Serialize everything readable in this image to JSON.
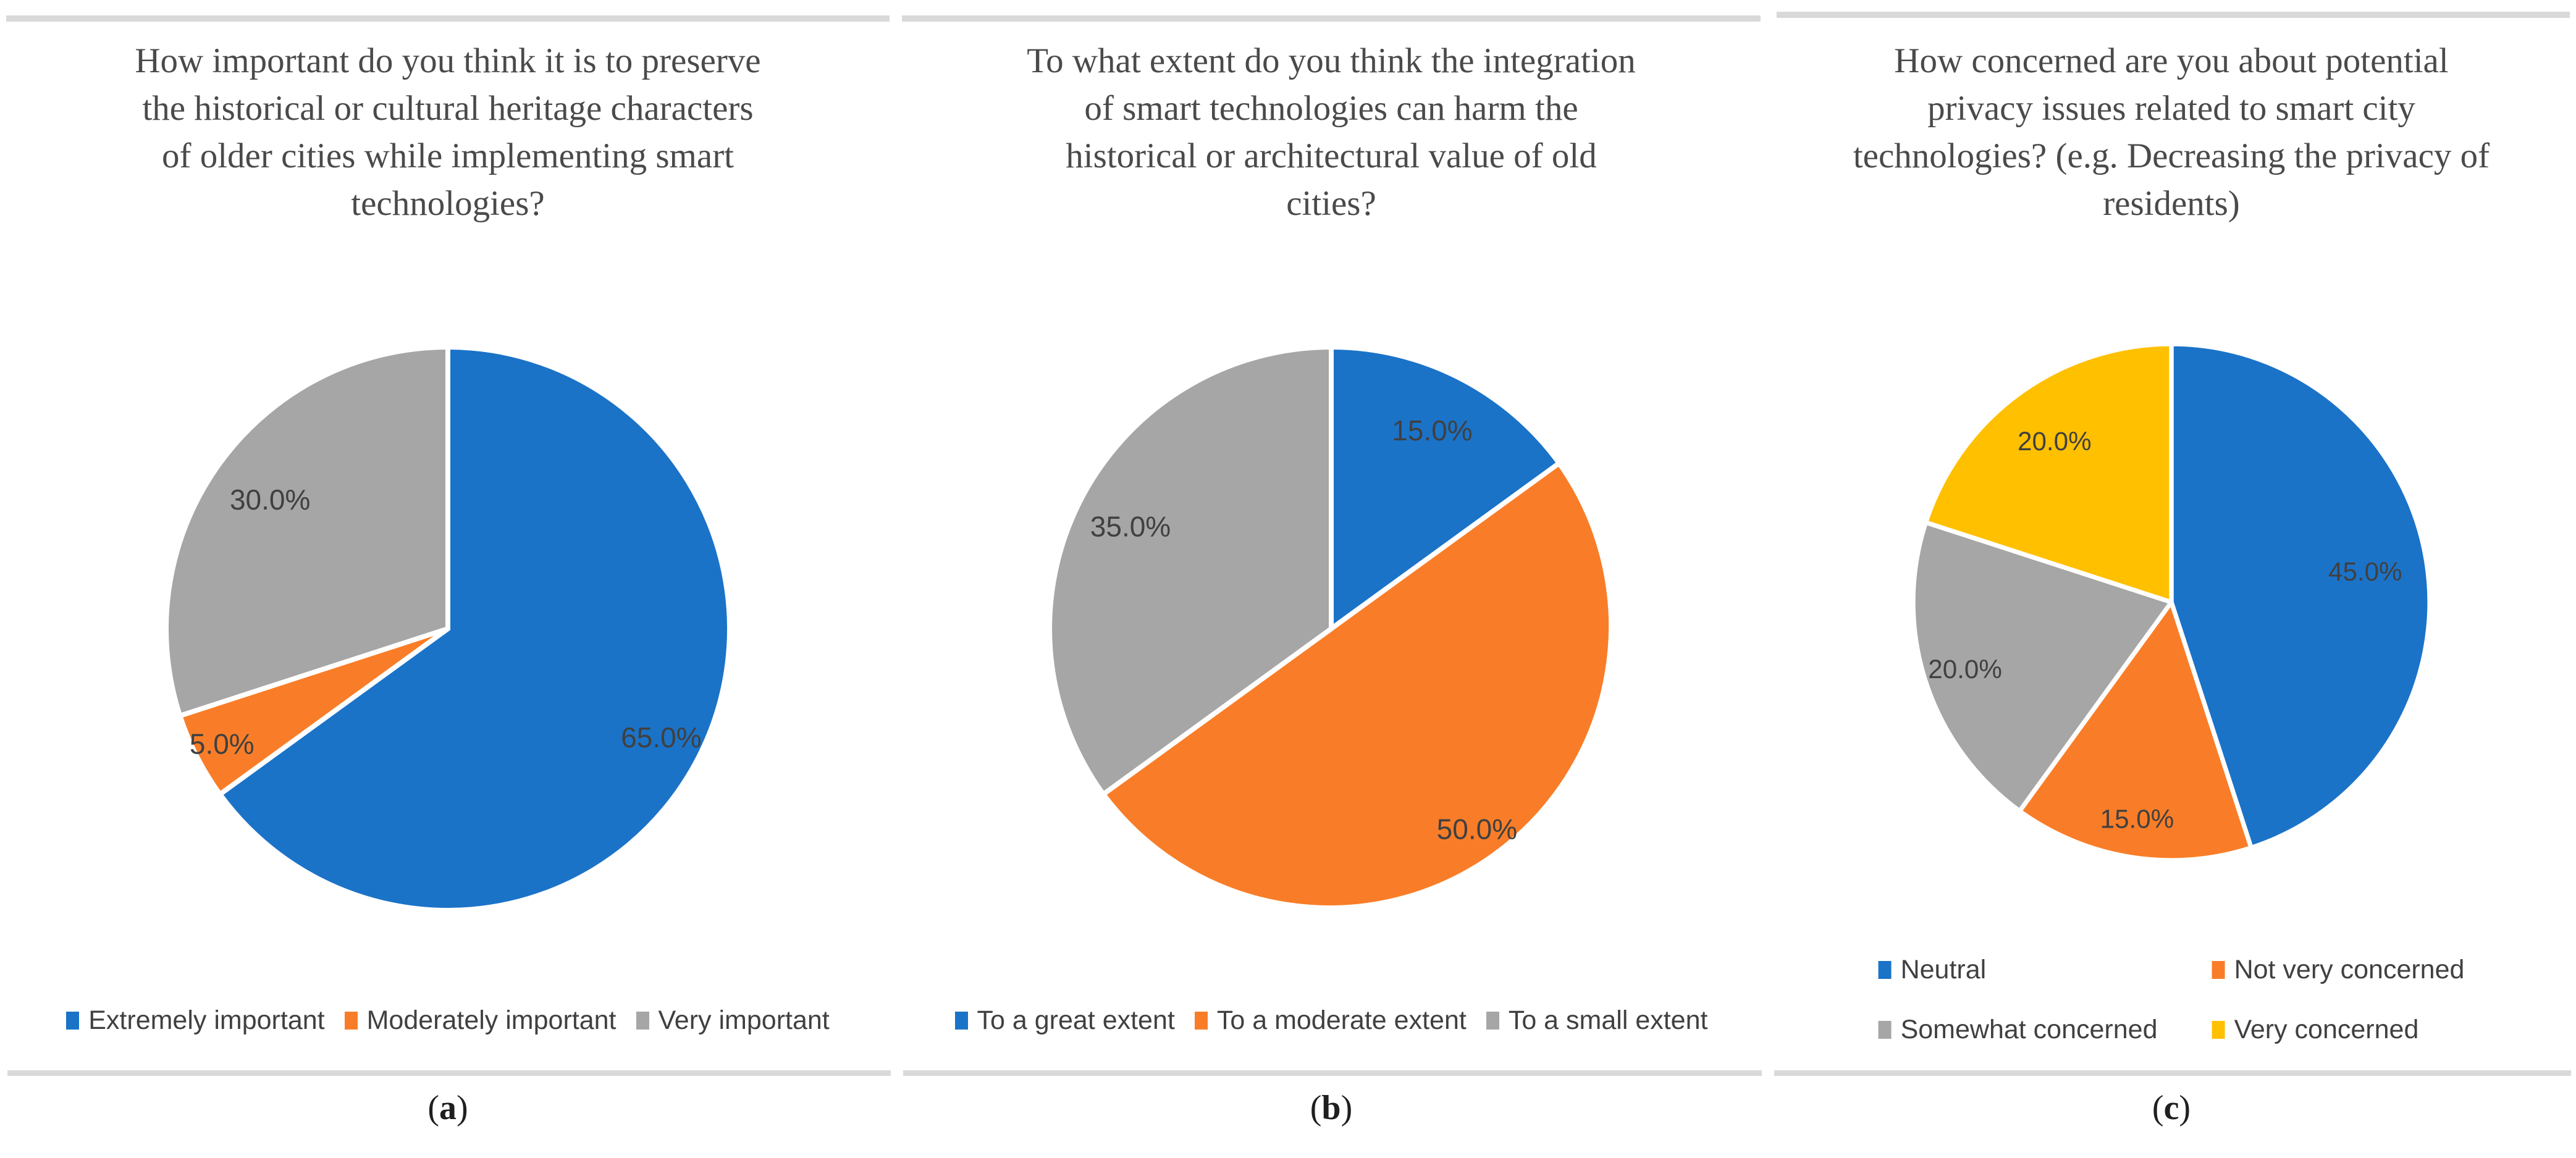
{
  "figure": {
    "background": "#ffffff",
    "rule_color": "#d9d9d9",
    "title_color": "#4a4a4a",
    "label_color": "#404040",
    "legend_color": "#404040",
    "caption_color": "#1f1f1f",
    "palette": {
      "blue": "#1b73c8",
      "orange": "#f97d28",
      "gray": "#a6a6a6",
      "yellow": "#ffc000"
    }
  },
  "panels": [
    {
      "caption": {
        "open": "(",
        "letter": "a",
        "close": ")"
      },
      "title_display": "How important do you think it is to preserve\nthe historical or cultural heritage characters\nof older cities while implementing smart\ntechnologies?"
    },
    {
      "caption": {
        "open": "(",
        "letter": "b",
        "close": ")"
      },
      "title_display": "To what extent do you think the integration\nof smart technologies can harm the\nhistorical or architectural value of old\ncities?"
    },
    {
      "caption": {
        "open": "(",
        "letter": "c",
        "close": ")"
      },
      "title_display": "How concerned are you about potential\nprivacy issues related to smart city\ntechnologies? (e.g. Decreasing the privacy of\nresidents)"
    }
  ],
  "chart_data": [
    {
      "type": "pie",
      "title": "How important do you think it is to preserve the historical or cultural heritage characters of older cities while implementing smart technologies?",
      "unit": "%",
      "start_angle_deg": 0,
      "direction": "clockwise",
      "legend_position": "bottom",
      "legend_layout": "row",
      "slices": [
        {
          "label": "Extremely important",
          "value": 65.0,
          "display": "65.0%",
          "color": "#1b73c8",
          "label_r": 0.85
        },
        {
          "label": "Moderately important",
          "value": 5.0,
          "display": "5.0%",
          "color": "#f97d28",
          "label_r": 0.9
        },
        {
          "label": "Very important",
          "value": 30.0,
          "display": "30.0%",
          "color": "#a6a6a6",
          "label_r": 0.78
        }
      ]
    },
    {
      "type": "pie",
      "title": "To what extent do you think the integration of smart technologies can harm the historical or architectural value of old cities?",
      "unit": "%",
      "start_angle_deg": 0,
      "direction": "clockwise",
      "legend_position": "bottom",
      "legend_layout": "row",
      "slices": [
        {
          "label": "To a great extent",
          "value": 15.0,
          "display": "15.0%",
          "color": "#1b73c8",
          "label_r": 0.79
        },
        {
          "label": "To a moderate extent",
          "value": 50.0,
          "display": "50.0%",
          "color": "#f97d28",
          "label_r": 0.88
        },
        {
          "label": "To a small extent",
          "value": 35.0,
          "display": "35.0%",
          "color": "#a6a6a6",
          "label_r": 0.8
        }
      ]
    },
    {
      "type": "pie",
      "title": "How concerned are you about potential privacy issues related to smart city technologies? (e.g. Decreasing the privacy of residents)",
      "unit": "%",
      "start_angle_deg": 0,
      "direction": "clockwise",
      "legend_position": "bottom",
      "legend_layout": "grid-2x2",
      "slices": [
        {
          "label": "Neutral",
          "value": 45.0,
          "display": "45.0%",
          "color": "#1b73c8",
          "label_r": 0.76
        },
        {
          "label": "Not very concerned",
          "value": 15.0,
          "display": "15.0%",
          "color": "#f97d28",
          "label_r": 0.85
        },
        {
          "label": "Somewhat concerned",
          "value": 20.0,
          "display": "20.0%",
          "color": "#a6a6a6",
          "label_r": 0.84
        },
        {
          "label": "Very concerned",
          "value": 20.0,
          "display": "20.0%",
          "color": "#ffc000",
          "label_r": 0.77
        }
      ]
    }
  ]
}
